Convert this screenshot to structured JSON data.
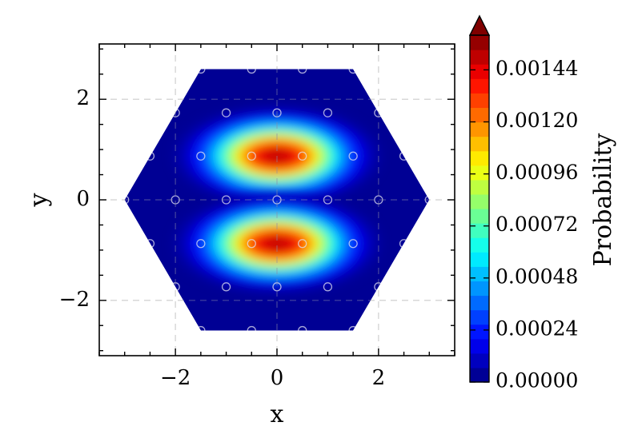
{
  "chart_data": {
    "type": "heatmap",
    "title": "",
    "xlabel": "x",
    "ylabel": "y",
    "xlim": [
      -3.5,
      3.5
    ],
    "ylim": [
      -3.1,
      3.1
    ],
    "x_ticks": [
      -2,
      0,
      2
    ],
    "y_ticks": [
      -2,
      0,
      2
    ],
    "x_tick_labels": [
      "−2",
      "0",
      "2"
    ],
    "y_tick_labels": [
      "−2",
      "0",
      "2"
    ],
    "grid": true,
    "region": "hexagon",
    "hexagon_vertices": [
      [
        -3,
        0
      ],
      [
        -1.5,
        2.6
      ],
      [
        1.5,
        2.6
      ],
      [
        3,
        0
      ],
      [
        1.5,
        -2.6
      ],
      [
        -1.5,
        -2.6
      ]
    ],
    "peaks": [
      {
        "x": 0,
        "y": 0.87,
        "value": 0.0015
      },
      {
        "x": 0,
        "y": -0.87,
        "value": 0.0015
      }
    ],
    "lattice_points": [
      [
        -0.5,
        2.6
      ],
      [
        0.5,
        2.6
      ],
      [
        -1.5,
        2.6
      ],
      [
        1.5,
        2.6
      ],
      [
        -1,
        1.73
      ],
      [
        0,
        1.73
      ],
      [
        1,
        1.73
      ],
      [
        -2,
        1.73
      ],
      [
        2,
        1.73
      ],
      [
        -2.5,
        0.87
      ],
      [
        -1.5,
        0.87
      ],
      [
        -0.5,
        0.87
      ],
      [
        0.5,
        0.87
      ],
      [
        1.5,
        0.87
      ],
      [
        2.5,
        0.87
      ],
      [
        -3,
        0
      ],
      [
        -2,
        0
      ],
      [
        -1,
        0
      ],
      [
        0,
        0
      ],
      [
        1,
        0
      ],
      [
        2,
        0
      ],
      [
        3,
        0
      ],
      [
        -2.5,
        -0.87
      ],
      [
        -1.5,
        -0.87
      ],
      [
        -0.5,
        -0.87
      ],
      [
        0.5,
        -0.87
      ],
      [
        1.5,
        -0.87
      ],
      [
        2.5,
        -0.87
      ],
      [
        -2,
        -1.73
      ],
      [
        -1,
        -1.73
      ],
      [
        0,
        -1.73
      ],
      [
        1,
        -1.73
      ],
      [
        2,
        -1.73
      ],
      [
        -1.5,
        -2.6
      ],
      [
        -0.5,
        -2.6
      ],
      [
        0.5,
        -2.6
      ],
      [
        1.5,
        -2.6
      ]
    ],
    "colorbar": {
      "label": "Probability",
      "min": 0,
      "max": 0.0016,
      "ticks": [
        0,
        0.00024,
        0.00048,
        0.00072,
        0.00096,
        0.0012,
        0.00144
      ],
      "tick_labels": [
        "0.00000",
        "0.00024",
        "0.00048",
        "0.00072",
        "0.00096",
        "0.00120",
        "0.00144"
      ],
      "levels": 24,
      "colormap": "jet",
      "extend": "max"
    }
  }
}
